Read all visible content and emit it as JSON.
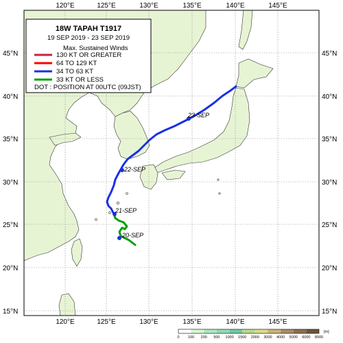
{
  "legend": {
    "title": "18W  TAPAH  T1917",
    "period": "19 SEP 2019 - 23 SEP 2019",
    "heading": "Max. Sustained Winds",
    "items": [
      {
        "label": "130 KT OR GREATER",
        "color": "#c8203a"
      },
      {
        "label": "64 TO 129 KT",
        "color": "#ff0000"
      },
      {
        "label": "34 TO 63 KT",
        "color": "#1a2fe6"
      },
      {
        "label": "33 KT OR LESS",
        "color": "#00a000"
      }
    ],
    "dot_note": "DOT : POSITION AT 00UTC (09JST)"
  },
  "lon_labels": [
    "120°E",
    "125°E",
    "130°E",
    "135°E",
    "140°E",
    "145°E"
  ],
  "lat_labels": [
    "45°N",
    "40°N",
    "35°N",
    "30°N",
    "25°N",
    "20°N",
    "15°N"
  ],
  "date_labels": [
    "20-SEP",
    "21-SEP",
    "22-SEP",
    "23-SEP"
  ],
  "colorbar": {
    "ticks": [
      "0",
      "100",
      "200",
      "500",
      "1000",
      "1500",
      "2000",
      "3000",
      "4000",
      "5000",
      "6000",
      "8000"
    ],
    "unit": "[m]",
    "colors": [
      "#ffffff",
      "#d8f5d0",
      "#a8e8c0",
      "#8fd9b6",
      "#6fc7a6",
      "#b9d88a",
      "#d9d98f",
      "#c9b27c",
      "#a88c66",
      "#8a6f52",
      "#6b543f"
    ]
  },
  "colors": {
    "land": "#e7f4d4",
    "coast": "#333333",
    "grid": "#888888"
  }
}
